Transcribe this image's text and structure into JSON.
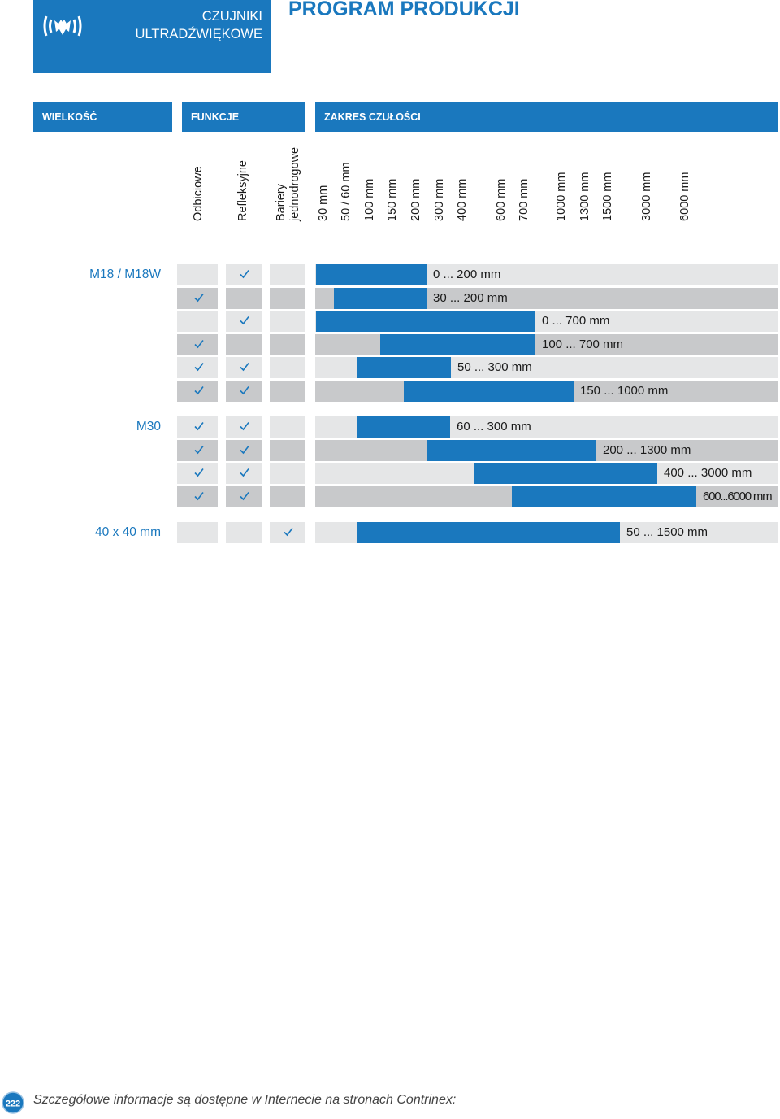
{
  "header": {
    "category_line1": "CZUJNIKI",
    "category_line2": "ULTRADŹWIĘKOWE",
    "title": "PROGRAM PRODUKCJI",
    "logo_icon": "ultrasonic-bat-icon"
  },
  "sections": {
    "size": "WIELKOŚĆ",
    "functions": "FUNKCJE",
    "range": "ZAKRES CZUŁOŚCI"
  },
  "function_columns": {
    "diffuse": "Odbiciowe",
    "reflex": "Refleksyjne",
    "barrier_line1": "Bariery",
    "barrier_line2": "jednodrogowe"
  },
  "range_columns": [
    "30 mm",
    "50 / 60 mm",
    "100 mm",
    "150 mm",
    "200 mm",
    "300 mm",
    "400 mm",
    "600 mm",
    "700 mm",
    "1000 mm",
    "1300 mm",
    "1500 mm",
    "3000 mm",
    "6000 mm"
  ],
  "check_symbol": "✓",
  "groups": [
    {
      "size": "M18 / M18W",
      "rows": [
        {
          "diffuse": false,
          "reflex": true,
          "barrier": false,
          "range": "0 ... 200 mm"
        },
        {
          "diffuse": true,
          "reflex": false,
          "barrier": false,
          "range": "30 ... 200 mm"
        },
        {
          "diffuse": false,
          "reflex": true,
          "barrier": false,
          "range": "0 ... 700 mm"
        },
        {
          "diffuse": true,
          "reflex": false,
          "barrier": false,
          "range": "100 ... 700 mm"
        },
        {
          "diffuse": true,
          "reflex": true,
          "barrier": false,
          "range": "50 ... 300 mm"
        },
        {
          "diffuse": true,
          "reflex": true,
          "barrier": false,
          "range": "150 ... 1000 mm"
        }
      ]
    },
    {
      "size": "M30",
      "rows": [
        {
          "diffuse": true,
          "reflex": true,
          "barrier": false,
          "range": "60 ... 300 mm"
        },
        {
          "diffuse": true,
          "reflex": true,
          "barrier": false,
          "range": "200 ... 1300 mm"
        },
        {
          "diffuse": true,
          "reflex": true,
          "barrier": false,
          "range": "400 ... 3000 mm"
        },
        {
          "diffuse": true,
          "reflex": true,
          "barrier": false,
          "range": "600...6000 mm"
        }
      ]
    },
    {
      "size": "40 x 40 mm",
      "rows": [
        {
          "diffuse": false,
          "reflex": false,
          "barrier": true,
          "range": "50 ... 1500 mm"
        }
      ]
    }
  ],
  "footer": {
    "page_number": "222",
    "text": "Szczegółowe informacje są dostępne w Internecie na stronach Contrinex:"
  },
  "colors": {
    "brand_blue": "#1a78be",
    "light_gray": "#e5e6e7",
    "dark_gray": "#c8c9cb"
  }
}
